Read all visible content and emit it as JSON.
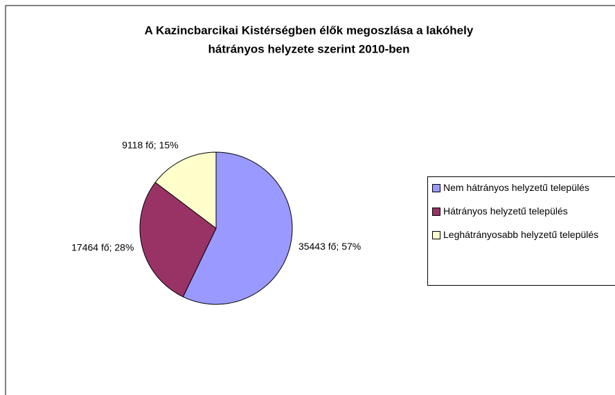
{
  "chart_data": {
    "type": "pie",
    "title": [
      "A Kazincbarcikai Kistérségben élők megoszlása a lakóhely",
      "hátrányos helyzete szerint 2010-ben"
    ],
    "categories": [
      "Nem hátrányos helyzetű település",
      "Hátrányos helyzetű település",
      "Leghátrányosabb helyzetű település"
    ],
    "values": [
      35443,
      17464,
      9118
    ],
    "value_labels": [
      "35443 fő; 57%",
      "17464 fő; 28%",
      "9118 fő; 15%"
    ],
    "colors": [
      "#9999ff",
      "#993366",
      "#ffffcc"
    ],
    "legend": "right"
  }
}
